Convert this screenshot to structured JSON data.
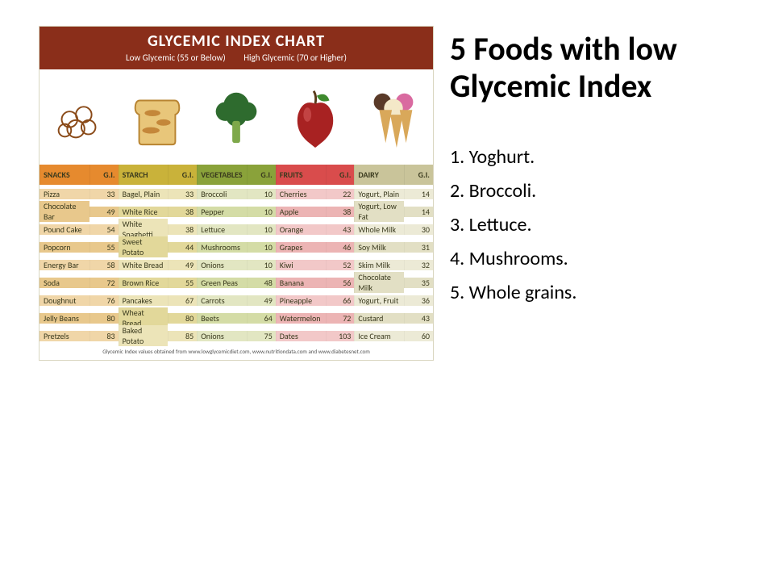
{
  "chart": {
    "title": "GLYCEMIC INDEX CHART",
    "subtitle_low": "Low Glycemic (55 or Below)",
    "subtitle_high": "High Glycemic (70 or Higher)",
    "header_bg": "#8a2e1a",
    "categories": [
      {
        "name": "SNACKS",
        "color_head": "#e68a2e",
        "stripe_a": "#f0d6a8",
        "stripe_b": "#e8c88c",
        "rows": [
          [
            "Pizza",
            33
          ],
          [
            "Chocolate Bar",
            49
          ],
          [
            "Pound Cake",
            54
          ],
          [
            "Popcorn",
            55
          ],
          [
            "Energy Bar",
            58
          ],
          [
            "Soda",
            72
          ],
          [
            "Doughnut",
            76
          ],
          [
            "Jelly Beans",
            80
          ],
          [
            "Pretzels",
            83
          ]
        ]
      },
      {
        "name": "STARCH",
        "color_head": "#c9b23a",
        "stripe_a": "#ece4b8",
        "stripe_b": "#e2d89a",
        "rows": [
          [
            "Bagel, Plain",
            33
          ],
          [
            "White Rice",
            38
          ],
          [
            "White Spaghetti",
            38
          ],
          [
            "Sweet Potato",
            44
          ],
          [
            "White Bread",
            49
          ],
          [
            "Brown Rice",
            55
          ],
          [
            "Pancakes",
            67
          ],
          [
            "Wheat Bread",
            80
          ],
          [
            "Baked Potato",
            85
          ]
        ]
      },
      {
        "name": "VEGETABLES",
        "color_head": "#8aa23a",
        "stripe_a": "#e2e6c2",
        "stripe_b": "#d4dca6",
        "rows": [
          [
            "Broccoli",
            10
          ],
          [
            "Pepper",
            10
          ],
          [
            "Lettuce",
            10
          ],
          [
            "Mushrooms",
            10
          ],
          [
            "Onions",
            10
          ],
          [
            "Green Peas",
            48
          ],
          [
            "Carrots",
            49
          ],
          [
            "Beets",
            64
          ],
          [
            "Onions",
            75
          ]
        ]
      },
      {
        "name": "FRUITS",
        "color_head": "#d94c4c",
        "stripe_a": "#f2c8c8",
        "stripe_b": "#ecb4b4",
        "rows": [
          [
            "Cherries",
            22
          ],
          [
            "Apple",
            38
          ],
          [
            "Orange",
            43
          ],
          [
            "Grapes",
            46
          ],
          [
            "Kiwi",
            52
          ],
          [
            "Banana",
            56
          ],
          [
            "Pineapple",
            66
          ],
          [
            "Watermelon",
            72
          ],
          [
            "Dates",
            103
          ]
        ]
      },
      {
        "name": "DAIRY",
        "color_head": "#c9c49a",
        "stripe_a": "#ecead6",
        "stripe_b": "#e2dfc4",
        "rows": [
          [
            "Yogurt, Plain",
            14
          ],
          [
            "Yogurt, Low Fat",
            14
          ],
          [
            "Whole Milk",
            30
          ],
          [
            "Soy Milk",
            31
          ],
          [
            "Skim Milk",
            32
          ],
          [
            "Chocolate Milk",
            35
          ],
          [
            "Yogurt, Fruit",
            36
          ],
          [
            "Custard",
            43
          ],
          [
            "Ice Cream",
            60
          ]
        ]
      }
    ],
    "gi_label": "G.I.",
    "footer": "Glycemic Index values obtained from www.lowglycemicdiet.com, www.nutritiondata.com and www.diabetesnet.com"
  },
  "right": {
    "heading": "5 Foods with low Glycemic Index",
    "items": [
      "1. Yoghurt.",
      "2. Broccoli.",
      "3. Lettuce.",
      "4. Mushrooms.",
      "5. Whole grains."
    ]
  }
}
